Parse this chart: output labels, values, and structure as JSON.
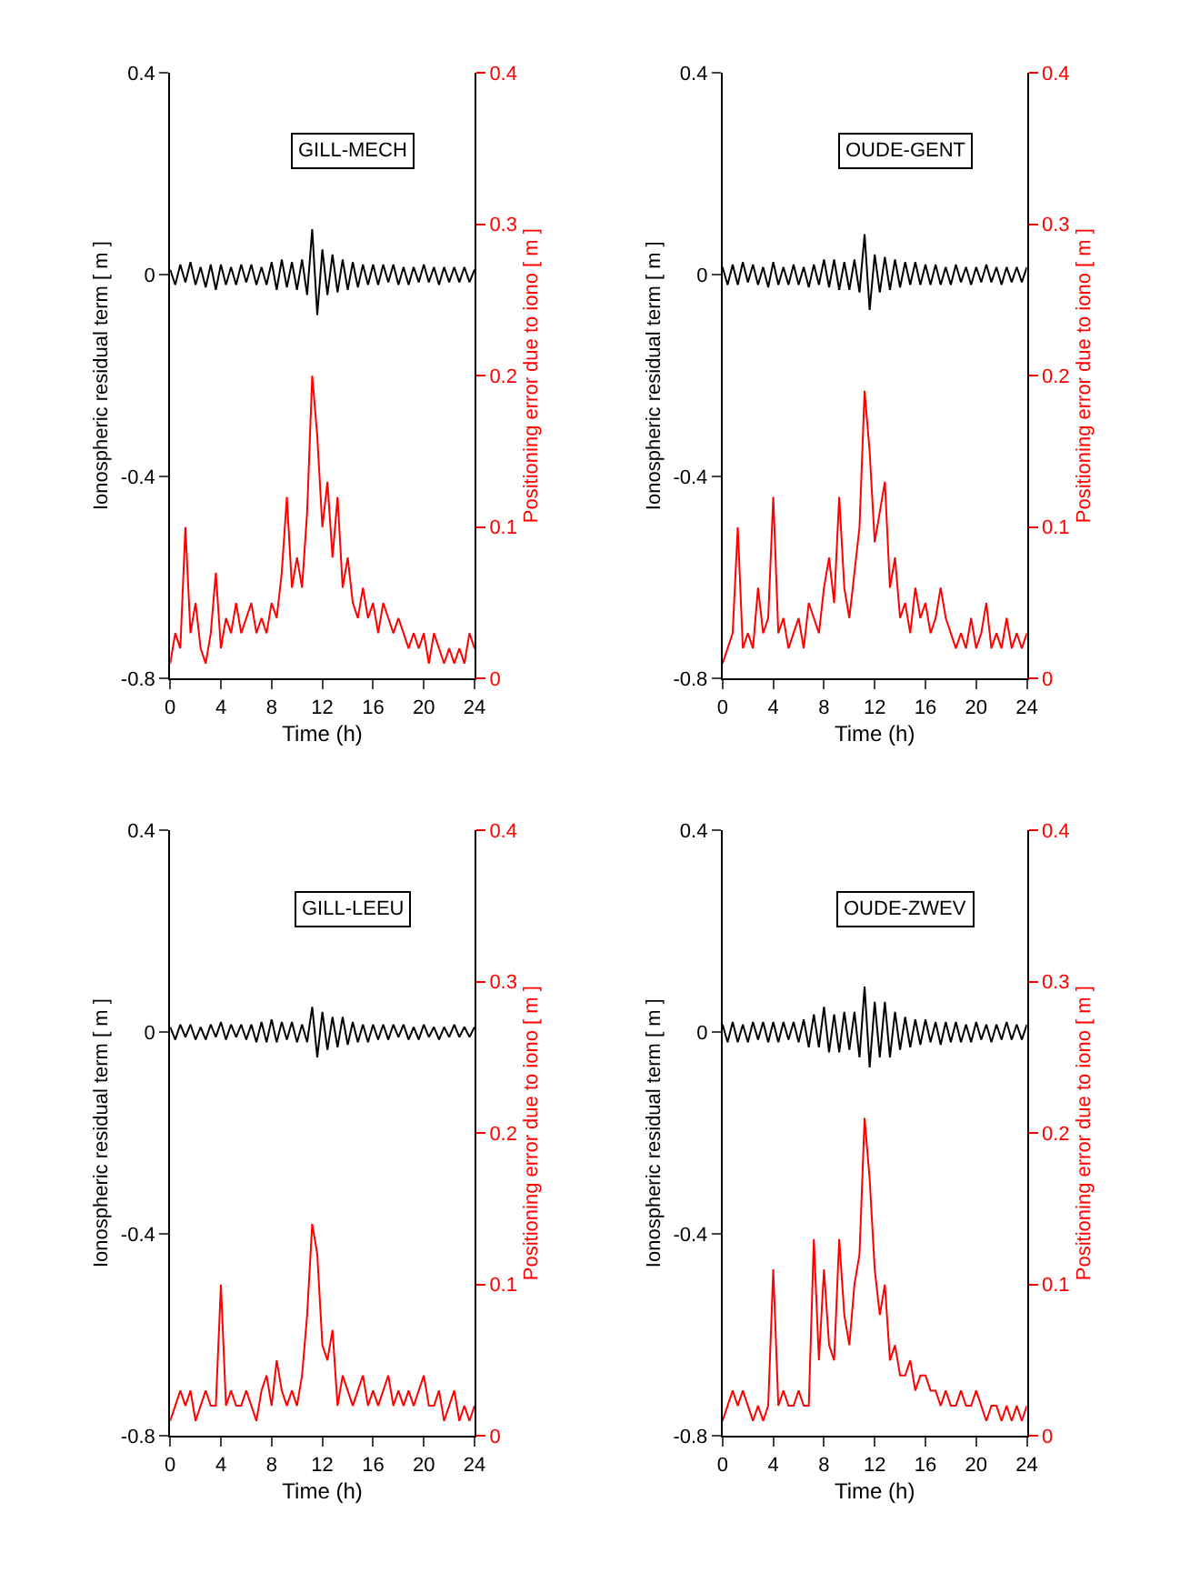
{
  "chart_data": [
    {
      "type": "line",
      "annotations": [
        "GILL-MECH"
      ],
      "xlabel": "Time (h)",
      "ylabel": "Ionospheric residual term [ m ]",
      "y2label": "Positioning error due to iono [ m ]",
      "x": [
        0,
        0.4,
        0.8,
        1.2,
        1.6,
        2,
        2.4,
        2.8,
        3.2,
        3.6,
        4,
        4.4,
        4.8,
        5.2,
        5.6,
        6,
        6.4,
        6.8,
        7.2,
        7.6,
        8,
        8.4,
        8.8,
        9.2,
        9.6,
        10,
        10.4,
        10.8,
        11.2,
        11.6,
        12,
        12.4,
        12.8,
        13.2,
        13.6,
        14,
        14.4,
        14.8,
        15.2,
        15.6,
        16,
        16.4,
        16.8,
        17.2,
        17.6,
        18,
        18.4,
        18.8,
        19.2,
        19.6,
        20,
        20.4,
        20.8,
        21.2,
        21.6,
        22,
        22.4,
        22.8,
        23.2,
        23.6,
        24
      ],
      "xlim": [
        0,
        24
      ],
      "xticks": [
        0,
        4,
        8,
        12,
        16,
        20,
        24
      ],
      "ylim": [
        -0.8,
        0.4
      ],
      "yticks": [
        -0.8,
        -0.4,
        0,
        0.4
      ],
      "y2lim": [
        0,
        0.4
      ],
      "y2ticks": [
        0,
        0.1,
        0.2,
        0.3,
        0.4
      ],
      "series": [
        {
          "color": "#000000",
          "values": [
            0.01,
            -0.02,
            0.02,
            -0.015,
            0.025,
            -0.02,
            0.015,
            -0.025,
            0.02,
            -0.03,
            0.02,
            -0.02,
            0.015,
            -0.02,
            0.02,
            -0.015,
            0.02,
            -0.02,
            0.015,
            -0.02,
            0.025,
            -0.03,
            0.03,
            -0.025,
            0.025,
            -0.03,
            0.03,
            -0.04,
            0.09,
            -0.08,
            0.05,
            -0.04,
            0.04,
            -0.035,
            0.03,
            -0.03,
            0.025,
            -0.025,
            0.02,
            -0.02,
            0.02,
            -0.02,
            0.02,
            -0.015,
            0.02,
            -0.02,
            0.015,
            -0.02,
            0.015,
            -0.015,
            0.02,
            -0.015,
            0.015,
            -0.02,
            0.015,
            -0.015,
            0.015,
            -0.015,
            0.015,
            -0.015,
            0.01
          ]
        },
        {
          "color": "#ff0000",
          "axis": "y2",
          "values": [
            0.01,
            0.03,
            0.02,
            0.1,
            0.03,
            0.05,
            0.02,
            0.01,
            0.03,
            0.07,
            0.02,
            0.04,
            0.03,
            0.05,
            0.03,
            0.04,
            0.05,
            0.03,
            0.04,
            0.03,
            0.05,
            0.04,
            0.07,
            0.12,
            0.06,
            0.08,
            0.06,
            0.11,
            0.2,
            0.16,
            0.1,
            0.13,
            0.08,
            0.12,
            0.06,
            0.08,
            0.05,
            0.04,
            0.06,
            0.04,
            0.05,
            0.03,
            0.05,
            0.04,
            0.03,
            0.04,
            0.03,
            0.02,
            0.03,
            0.02,
            0.03,
            0.01,
            0.03,
            0.02,
            0.01,
            0.02,
            0.01,
            0.02,
            0.01,
            0.03,
            0.02
          ]
        }
      ]
    },
    {
      "type": "line",
      "annotations": [
        "OUDE-GENT"
      ],
      "xlabel": "Time (h)",
      "ylabel": "Ionospheric residual term [ m ]",
      "y2label": "Positioning error due to iono [ m ]",
      "x": [
        0,
        0.4,
        0.8,
        1.2,
        1.6,
        2,
        2.4,
        2.8,
        3.2,
        3.6,
        4,
        4.4,
        4.8,
        5.2,
        5.6,
        6,
        6.4,
        6.8,
        7.2,
        7.6,
        8,
        8.4,
        8.8,
        9.2,
        9.6,
        10,
        10.4,
        10.8,
        11.2,
        11.6,
        12,
        12.4,
        12.8,
        13.2,
        13.6,
        14,
        14.4,
        14.8,
        15.2,
        15.6,
        16,
        16.4,
        16.8,
        17.2,
        17.6,
        18,
        18.4,
        18.8,
        19.2,
        19.6,
        20,
        20.4,
        20.8,
        21.2,
        21.6,
        22,
        22.4,
        22.8,
        23.2,
        23.6,
        24
      ],
      "xlim": [
        0,
        24
      ],
      "xticks": [
        0,
        4,
        8,
        12,
        16,
        20,
        24
      ],
      "ylim": [
        -0.8,
        0.4
      ],
      "yticks": [
        -0.8,
        -0.4,
        0,
        0.4
      ],
      "y2lim": [
        0,
        0.4
      ],
      "y2ticks": [
        0,
        0.1,
        0.2,
        0.3,
        0.4
      ],
      "series": [
        {
          "color": "#000000",
          "values": [
            0.015,
            -0.02,
            0.02,
            -0.02,
            0.025,
            -0.015,
            0.02,
            -0.02,
            0.015,
            -0.025,
            0.025,
            -0.02,
            0.015,
            -0.02,
            0.02,
            -0.02,
            0.015,
            -0.025,
            0.02,
            -0.02,
            0.03,
            -0.025,
            0.03,
            -0.03,
            0.025,
            -0.03,
            0.03,
            -0.035,
            0.08,
            -0.07,
            0.04,
            -0.035,
            0.035,
            -0.03,
            0.03,
            -0.025,
            0.025,
            -0.02,
            0.025,
            -0.02,
            0.02,
            -0.02,
            0.02,
            -0.02,
            0.015,
            -0.02,
            0.02,
            -0.015,
            0.015,
            -0.02,
            0.015,
            -0.015,
            0.02,
            -0.015,
            0.015,
            -0.02,
            0.015,
            -0.015,
            0.015,
            -0.015,
            0.015
          ]
        },
        {
          "color": "#ff0000",
          "axis": "y2",
          "values": [
            0.01,
            0.02,
            0.03,
            0.1,
            0.02,
            0.03,
            0.02,
            0.06,
            0.03,
            0.04,
            0.12,
            0.03,
            0.04,
            0.02,
            0.03,
            0.04,
            0.02,
            0.05,
            0.04,
            0.03,
            0.06,
            0.08,
            0.05,
            0.12,
            0.06,
            0.04,
            0.07,
            0.1,
            0.19,
            0.15,
            0.09,
            0.11,
            0.13,
            0.06,
            0.08,
            0.04,
            0.05,
            0.03,
            0.06,
            0.04,
            0.05,
            0.03,
            0.04,
            0.06,
            0.04,
            0.03,
            0.02,
            0.03,
            0.02,
            0.04,
            0.02,
            0.03,
            0.05,
            0.02,
            0.03,
            0.02,
            0.04,
            0.02,
            0.03,
            0.02,
            0.03
          ]
        }
      ]
    },
    {
      "type": "line",
      "annotations": [
        "GILL-LEEU"
      ],
      "xlabel": "Time (h)",
      "ylabel": "Ionospheric residual term [ m ]",
      "y2label": "Positioning error due to iono [ m ]",
      "x": [
        0,
        0.4,
        0.8,
        1.2,
        1.6,
        2,
        2.4,
        2.8,
        3.2,
        3.6,
        4,
        4.4,
        4.8,
        5.2,
        5.6,
        6,
        6.4,
        6.8,
        7.2,
        7.6,
        8,
        8.4,
        8.8,
        9.2,
        9.6,
        10,
        10.4,
        10.8,
        11.2,
        11.6,
        12,
        12.4,
        12.8,
        13.2,
        13.6,
        14,
        14.4,
        14.8,
        15.2,
        15.6,
        16,
        16.4,
        16.8,
        17.2,
        17.6,
        18,
        18.4,
        18.8,
        19.2,
        19.6,
        20,
        20.4,
        20.8,
        21.2,
        21.6,
        22,
        22.4,
        22.8,
        23.2,
        23.6,
        24
      ],
      "xlim": [
        0,
        24
      ],
      "xticks": [
        0,
        4,
        8,
        12,
        16,
        20,
        24
      ],
      "ylim": [
        -0.8,
        0.4
      ],
      "yticks": [
        -0.8,
        -0.4,
        0,
        0.4
      ],
      "y2lim": [
        0,
        0.4
      ],
      "y2ticks": [
        0,
        0.1,
        0.2,
        0.3,
        0.4
      ],
      "series": [
        {
          "color": "#000000",
          "values": [
            0.01,
            -0.015,
            0.015,
            -0.01,
            0.015,
            -0.015,
            0.01,
            -0.015,
            0.015,
            -0.01,
            0.02,
            -0.015,
            0.015,
            -0.01,
            0.015,
            -0.015,
            0.015,
            -0.02,
            0.02,
            -0.02,
            0.025,
            -0.02,
            0.02,
            -0.015,
            0.02,
            -0.02,
            0.015,
            -0.02,
            0.05,
            -0.05,
            0.04,
            -0.035,
            0.03,
            -0.03,
            0.03,
            -0.025,
            0.02,
            -0.02,
            0.015,
            -0.02,
            0.015,
            -0.015,
            0.015,
            -0.015,
            0.015,
            -0.01,
            0.015,
            -0.015,
            0.01,
            -0.015,
            0.015,
            -0.01,
            0.01,
            -0.015,
            0.01,
            -0.01,
            0.015,
            -0.01,
            0.01,
            -0.01,
            0.01
          ]
        },
        {
          "color": "#ff0000",
          "axis": "y2",
          "values": [
            0.01,
            0.02,
            0.03,
            0.02,
            0.03,
            0.01,
            0.02,
            0.03,
            0.02,
            0.02,
            0.1,
            0.02,
            0.03,
            0.02,
            0.02,
            0.03,
            0.02,
            0.01,
            0.03,
            0.04,
            0.02,
            0.05,
            0.03,
            0.02,
            0.03,
            0.02,
            0.04,
            0.08,
            0.14,
            0.12,
            0.06,
            0.05,
            0.07,
            0.02,
            0.04,
            0.03,
            0.02,
            0.03,
            0.04,
            0.02,
            0.03,
            0.02,
            0.03,
            0.04,
            0.02,
            0.03,
            0.02,
            0.03,
            0.02,
            0.03,
            0.04,
            0.02,
            0.02,
            0.03,
            0.01,
            0.02,
            0.03,
            0.01,
            0.02,
            0.01,
            0.02
          ]
        }
      ]
    },
    {
      "type": "line",
      "annotations": [
        "OUDE-ZWEV"
      ],
      "xlabel": "Time (h)",
      "ylabel": "Ionospheric residual term [ m ]",
      "y2label": "Positioning error due to iono [ m ]",
      "x": [
        0,
        0.4,
        0.8,
        1.2,
        1.6,
        2,
        2.4,
        2.8,
        3.2,
        3.6,
        4,
        4.4,
        4.8,
        5.2,
        5.6,
        6,
        6.4,
        6.8,
        7.2,
        7.6,
        8,
        8.4,
        8.8,
        9.2,
        9.6,
        10,
        10.4,
        10.8,
        11.2,
        11.6,
        12,
        12.4,
        12.8,
        13.2,
        13.6,
        14,
        14.4,
        14.8,
        15.2,
        15.6,
        16,
        16.4,
        16.8,
        17.2,
        17.6,
        18,
        18.4,
        18.8,
        19.2,
        19.6,
        20,
        20.4,
        20.8,
        21.2,
        21.6,
        22,
        22.4,
        22.8,
        23.2,
        23.6,
        24
      ],
      "xlim": [
        0,
        24
      ],
      "xticks": [
        0,
        4,
        8,
        12,
        16,
        20,
        24
      ],
      "ylim": [
        -0.8,
        0.4
      ],
      "yticks": [
        -0.8,
        -0.4,
        0,
        0.4
      ],
      "y2lim": [
        0,
        0.4
      ],
      "y2ticks": [
        0,
        0.1,
        0.2,
        0.3,
        0.4
      ],
      "series": [
        {
          "color": "#000000",
          "values": [
            0.015,
            -0.02,
            0.02,
            -0.02,
            0.015,
            -0.02,
            0.02,
            -0.015,
            0.02,
            -0.02,
            0.02,
            -0.02,
            0.02,
            -0.015,
            0.02,
            -0.02,
            0.025,
            -0.03,
            0.035,
            -0.03,
            0.05,
            -0.04,
            0.035,
            -0.04,
            0.04,
            -0.035,
            0.04,
            -0.05,
            0.09,
            -0.07,
            0.06,
            -0.05,
            0.06,
            -0.05,
            0.04,
            -0.035,
            0.03,
            -0.03,
            0.025,
            -0.025,
            0.025,
            -0.02,
            0.02,
            -0.025,
            0.02,
            -0.02,
            0.02,
            -0.02,
            0.015,
            -0.02,
            0.02,
            -0.015,
            0.015,
            -0.02,
            0.015,
            -0.015,
            0.02,
            -0.015,
            0.015,
            -0.015,
            0.015
          ]
        },
        {
          "color": "#ff0000",
          "axis": "y2",
          "values": [
            0.01,
            0.02,
            0.03,
            0.02,
            0.03,
            0.02,
            0.01,
            0.02,
            0.01,
            0.02,
            0.11,
            0.02,
            0.03,
            0.02,
            0.02,
            0.03,
            0.02,
            0.02,
            0.13,
            0.05,
            0.11,
            0.06,
            0.05,
            0.13,
            0.08,
            0.06,
            0.1,
            0.12,
            0.21,
            0.17,
            0.11,
            0.08,
            0.1,
            0.05,
            0.06,
            0.04,
            0.04,
            0.05,
            0.03,
            0.04,
            0.04,
            0.03,
            0.03,
            0.02,
            0.03,
            0.02,
            0.02,
            0.03,
            0.02,
            0.02,
            0.03,
            0.02,
            0.01,
            0.02,
            0.02,
            0.01,
            0.02,
            0.01,
            0.02,
            0.01,
            0.02
          ]
        }
      ]
    }
  ]
}
